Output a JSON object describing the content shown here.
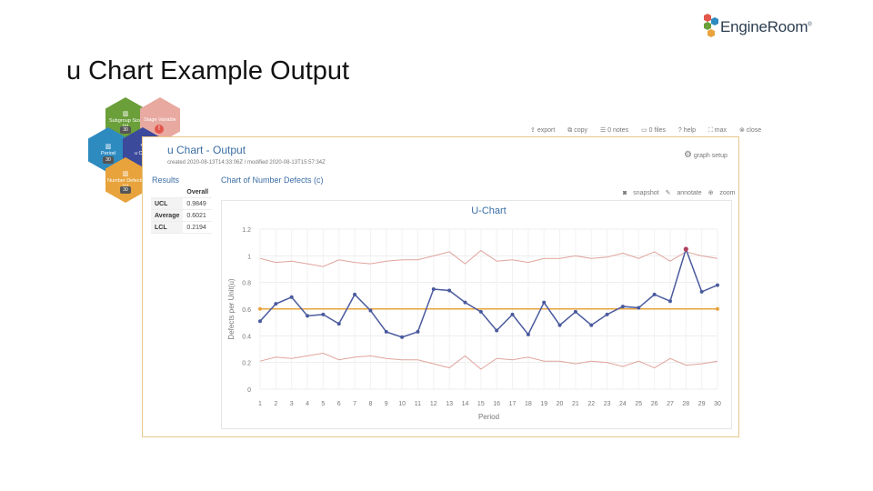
{
  "slide": {
    "title": "u Chart Example Output"
  },
  "brand": {
    "name": "EngineRoom",
    "mark": "®"
  },
  "workflow": {
    "nodes": [
      {
        "id": "subgroup",
        "label": "Subgroup Size (n)",
        "badge": "30",
        "color": "#6a9f3a"
      },
      {
        "id": "stage",
        "label": "Stage Variable",
        "badge": "",
        "color": "#e8a9a0"
      },
      {
        "id": "period",
        "label": "Period",
        "badge": "30",
        "color": "#2e8bc0"
      },
      {
        "id": "uchart",
        "label": "u Chart",
        "badge": "",
        "color": "#3b4a9b"
      },
      {
        "id": "defects",
        "label": "Number Defects (c)",
        "badge": "30",
        "color": "#e8a33c"
      }
    ],
    "warning": "!"
  },
  "toolbar": {
    "export": "export",
    "copy": "copy",
    "notes": "0 notes",
    "files": "0 files",
    "help": "help",
    "max": "max",
    "close": "close"
  },
  "panel": {
    "title": "u Chart - Output",
    "meta": "created 2020-08-13T14:33:06Z / modified 2020-08-13T15:57:34Z",
    "graph_setup": "graph setup",
    "results_label": "Results",
    "chart_label": "Chart of Number Defects (c)"
  },
  "results": {
    "header": "Overall",
    "rows": [
      {
        "label": "UCL",
        "value": "0.9849"
      },
      {
        "label": "Average",
        "value": "0.6021"
      },
      {
        "label": "LCL",
        "value": "0.2194"
      }
    ]
  },
  "chart_toolbar": {
    "snapshot": "snapshot",
    "annotate": "annotate",
    "zoom": "zoom"
  },
  "chart_data": {
    "type": "line",
    "title": "U-Chart",
    "xlabel": "Period",
    "ylabel": "Defects per Unit(u)",
    "ylim": [
      0,
      1.2
    ],
    "yticks": [
      0,
      0.2,
      0.4,
      0.6,
      0.8,
      1,
      1.2
    ],
    "ytick_labels": [
      "0",
      "0.2",
      "0.4",
      "0.6",
      "0.8",
      "1",
      "1.2"
    ],
    "x": [
      1,
      2,
      3,
      4,
      5,
      6,
      7,
      8,
      9,
      10,
      11,
      12,
      13,
      14,
      15,
      16,
      17,
      18,
      19,
      20,
      21,
      22,
      23,
      24,
      25,
      26,
      27,
      28,
      29,
      30
    ],
    "grid": true,
    "series": [
      {
        "key": "u",
        "color": "#4a5a9e",
        "markers": true,
        "values": [
          0.51,
          0.64,
          0.69,
          0.55,
          0.56,
          0.49,
          0.71,
          0.59,
          0.43,
          0.39,
          0.43,
          0.75,
          0.74,
          0.65,
          0.58,
          0.44,
          0.56,
          0.41,
          0.65,
          0.48,
          0.58,
          0.48,
          0.56,
          0.62,
          0.61,
          0.71,
          0.66,
          1.05,
          0.73,
          0.78
        ]
      },
      {
        "key": "center",
        "color": "#e8a33c",
        "markers": true,
        "marker_ends_only": true,
        "values": [
          0.6021,
          0.6021,
          0.6021,
          0.6021,
          0.6021,
          0.6021,
          0.6021,
          0.6021,
          0.6021,
          0.6021,
          0.6021,
          0.6021,
          0.6021,
          0.6021,
          0.6021,
          0.6021,
          0.6021,
          0.6021,
          0.6021,
          0.6021,
          0.6021,
          0.6021,
          0.6021,
          0.6021,
          0.6021,
          0.6021,
          0.6021,
          0.6021,
          0.6021,
          0.6021
        ]
      },
      {
        "key": "ucl",
        "color": "#e0a49c",
        "markers": false,
        "values": [
          0.98,
          0.95,
          0.96,
          0.94,
          0.92,
          0.97,
          0.95,
          0.94,
          0.96,
          0.97,
          0.97,
          1.0,
          1.03,
          0.94,
          1.04,
          0.96,
          0.97,
          0.95,
          0.98,
          0.98,
          1.0,
          0.98,
          0.99,
          1.02,
          0.98,
          1.03,
          0.96,
          1.03,
          1.0,
          0.98
        ]
      },
      {
        "key": "lcl",
        "color": "#e0a49c",
        "markers": false,
        "values": [
          0.21,
          0.24,
          0.23,
          0.25,
          0.27,
          0.22,
          0.24,
          0.25,
          0.23,
          0.22,
          0.22,
          0.19,
          0.16,
          0.25,
          0.15,
          0.23,
          0.22,
          0.24,
          0.21,
          0.21,
          0.19,
          0.21,
          0.2,
          0.17,
          0.21,
          0.16,
          0.23,
          0.18,
          0.19,
          0.21
        ]
      }
    ],
    "out_of_control_color": "#b0415f",
    "out_of_control_points": [
      28
    ]
  }
}
